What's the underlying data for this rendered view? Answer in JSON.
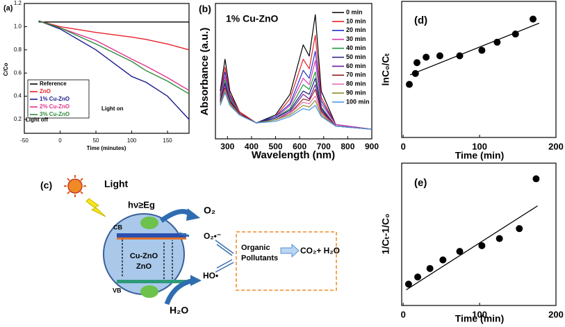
{
  "chart_data": [
    {
      "type": "line",
      "label": "(a)",
      "xlabel": "Time (minutes)",
      "ylabel": "C/Co",
      "x": [
        -30,
        0,
        50,
        100,
        120,
        150,
        180
      ],
      "series": [
        {
          "name": "Reference",
          "color": "#000000",
          "values": [
            1.04,
            1.04,
            1.04,
            1.04,
            1.04,
            1.04,
            1.04
          ]
        },
        {
          "name": "ZnO",
          "color": "#e8202a",
          "values": [
            1.05,
            1.0,
            0.95,
            0.91,
            0.89,
            0.85,
            0.8
          ]
        },
        {
          "name": "1% Cu-ZnO",
          "color": "#1a1a8c",
          "values": [
            1.05,
            0.98,
            0.8,
            0.57,
            0.52,
            0.4,
            0.2
          ]
        },
        {
          "name": "2% Cu-ZnO",
          "color": "#e0338f",
          "values": [
            1.05,
            0.99,
            0.88,
            0.72,
            0.66,
            0.56,
            0.45
          ]
        },
        {
          "name": "3% Cu-ZnO",
          "color": "#2e8b3a",
          "values": [
            1.05,
            0.99,
            0.85,
            0.7,
            0.62,
            0.53,
            0.42
          ]
        }
      ],
      "xlim": [
        -50,
        180
      ],
      "xticks": [
        -50,
        0,
        50,
        100,
        150
      ],
      "ylim": [
        0.08,
        1.2
      ],
      "yticks": [
        0.2,
        0.4,
        0.6,
        0.8,
        {
          "value": 1,
          "label": "1.0"
        },
        1.2
      ],
      "annotations": [
        "Light on",
        "Light off"
      ]
    },
    {
      "type": "line",
      "label": "(b)",
      "title": "1% Cu-ZnO",
      "xlabel": "Wavelength (nm)",
      "ylabel": "Absorbance (a.u.)",
      "x": [
        270,
        290,
        310,
        350,
        420,
        500,
        560,
        615,
        640,
        665,
        690,
        750,
        900
      ],
      "series": [
        {
          "name": "0 min",
          "color": "#000000",
          "values": [
            0.4,
            0.6,
            0.4,
            0.27,
            0.2,
            0.25,
            0.38,
            0.69,
            0.62,
            0.88,
            0.4,
            0.19,
            0.16
          ]
        },
        {
          "name": "10 min",
          "color": "#e8202a",
          "values": [
            0.38,
            0.55,
            0.38,
            0.27,
            0.2,
            0.24,
            0.35,
            0.6,
            0.54,
            0.75,
            0.36,
            0.19,
            0.16
          ]
        },
        {
          "name": "20 min",
          "color": "#2233cc",
          "values": [
            0.37,
            0.52,
            0.37,
            0.26,
            0.2,
            0.24,
            0.32,
            0.53,
            0.48,
            0.65,
            0.34,
            0.19,
            0.16
          ]
        },
        {
          "name": "30 min",
          "color": "#d63ab0",
          "values": [
            0.36,
            0.49,
            0.36,
            0.26,
            0.2,
            0.23,
            0.31,
            0.48,
            0.44,
            0.59,
            0.32,
            0.19,
            0.16
          ]
        },
        {
          "name": "40 min",
          "color": "#1f9a3a",
          "values": [
            0.35,
            0.47,
            0.35,
            0.26,
            0.2,
            0.23,
            0.29,
            0.44,
            0.41,
            0.52,
            0.3,
            0.18,
            0.16
          ]
        },
        {
          "name": "50 min",
          "color": "#1a1a7a",
          "values": [
            0.34,
            0.45,
            0.34,
            0.26,
            0.2,
            0.23,
            0.28,
            0.4,
            0.38,
            0.48,
            0.29,
            0.18,
            0.16
          ]
        },
        {
          "name": "60 min",
          "color": "#6a1b9a",
          "values": [
            0.33,
            0.44,
            0.33,
            0.26,
            0.2,
            0.22,
            0.27,
            0.38,
            0.35,
            0.44,
            0.28,
            0.18,
            0.16
          ]
        },
        {
          "name": "70 min",
          "color": "#8b1a1a",
          "values": [
            0.33,
            0.42,
            0.33,
            0.26,
            0.2,
            0.22,
            0.26,
            0.35,
            0.34,
            0.41,
            0.27,
            0.18,
            0.16
          ]
        },
        {
          "name": "80 min",
          "color": "#e86fb0",
          "values": [
            0.32,
            0.41,
            0.32,
            0.25,
            0.2,
            0.22,
            0.26,
            0.33,
            0.32,
            0.37,
            0.26,
            0.18,
            0.16
          ]
        },
        {
          "name": "90 min",
          "color": "#8c8c2a",
          "values": [
            0.32,
            0.4,
            0.32,
            0.25,
            0.2,
            0.22,
            0.25,
            0.31,
            0.3,
            0.34,
            0.25,
            0.18,
            0.16
          ]
        },
        {
          "name": "100 min",
          "color": "#3f8fe0",
          "values": [
            0.31,
            0.39,
            0.31,
            0.25,
            0.2,
            0.21,
            0.24,
            0.29,
            0.28,
            0.31,
            0.24,
            0.18,
            0.16
          ]
        }
      ],
      "xlim": [
        250,
        900
      ],
      "xticks": [
        300,
        400,
        500,
        600,
        700,
        800,
        900
      ],
      "ylim": [
        0.1,
        0.95
      ]
    },
    {
      "type": "scatter",
      "label": "(d)",
      "xlabel": "Time (min)",
      "ylabel": "lnC₀/Cₜ",
      "x": [
        8,
        16,
        18,
        30,
        48,
        74,
        103,
        123,
        147,
        170
      ],
      "values": [
        0.39,
        0.47,
        0.55,
        0.59,
        0.6,
        0.6,
        0.64,
        0.7,
        0.76,
        0.87
      ],
      "fit": {
        "x": [
          9,
          178
        ],
        "values": [
          0.46,
          0.84
        ]
      },
      "color": "#000000",
      "xlim": [
        -2,
        200
      ],
      "xticks": [
        0,
        100,
        200
      ],
      "ylim": [
        0,
        1
      ]
    },
    {
      "type": "scatter",
      "label": "(e)",
      "xlabel": "Time (min)",
      "ylabel": "1/Cₜ-1/C₀",
      "x": [
        7,
        19,
        35,
        52,
        74,
        103,
        126,
        152,
        174
      ],
      "values": [
        0.15,
        0.2,
        0.26,
        0.32,
        0.38,
        0.42,
        0.47,
        0.54,
        0.89
      ],
      "fit": {
        "x": [
          4,
          176
        ],
        "values": [
          0.11,
          0.7
        ]
      },
      "color": "#000000",
      "xlim": [
        -2,
        200
      ],
      "xticks": [
        0,
        100,
        200
      ],
      "ylim": [
        0,
        1
      ]
    }
  ],
  "diagram": {
    "label": "(c)",
    "light": "Light",
    "energy": "hν≥Eg",
    "cb": "CB",
    "vb": "VB",
    "material": [
      "Cu-ZnO",
      "ZnO"
    ],
    "o2": "O₂",
    "superoxide": "O₂•⁻",
    "hydroxyl": "HO•",
    "water": "H₂O",
    "pollutant": [
      "Organic",
      "Pollutants"
    ],
    "products": "CO₂+ H₂O"
  }
}
